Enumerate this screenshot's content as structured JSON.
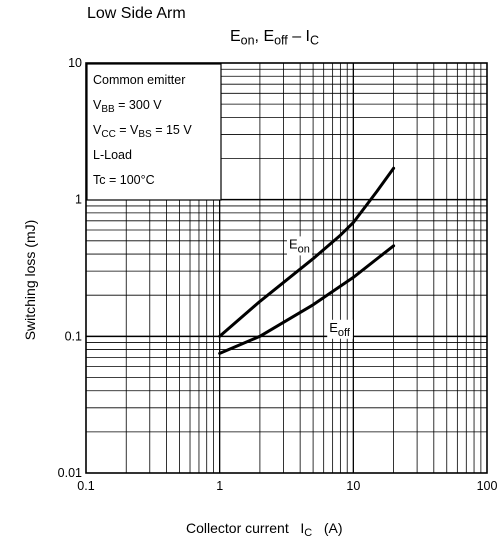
{
  "page_title": "Low Side Arm",
  "chart_data": {
    "type": "line",
    "title": {
      "main1": "E",
      "sub1": "on",
      "main2": ", E",
      "sub2": "off",
      "main3": " – I",
      "sub3": "C"
    },
    "xlabel": {
      "text": "Collector current",
      "symbol": "I",
      "sub": "C",
      "unit": "(A)"
    },
    "ylabel": "Switching loss   (mJ)",
    "x_scale": "log",
    "y_scale": "log",
    "xlim": [
      0.1,
      100
    ],
    "ylim": [
      0.01,
      10
    ],
    "x_ticks": [
      "0.1",
      "1",
      "10",
      "100"
    ],
    "y_ticks": [
      "0.01",
      "0.1",
      "1",
      "10"
    ],
    "grid": true,
    "conditions": {
      "line1": "Common emitter",
      "line2": {
        "main": "V",
        "sub": "BB",
        "rest": " = 300 V"
      },
      "line3": {
        "main1": "V",
        "sub1": "CC",
        "mid": " = V",
        "sub2": "BS",
        "rest": " = 15 V"
      },
      "line4": "L-Load",
      "line5": "Tc = 100°C"
    },
    "series": [
      {
        "name": "Eon",
        "label_main": "E",
        "label_sub": "on",
        "x": [
          1,
          2,
          5,
          8,
          10,
          15,
          20
        ],
        "y": [
          0.1,
          0.18,
          0.37,
          0.55,
          0.68,
          1.15,
          1.7
        ]
      },
      {
        "name": "Eoff",
        "label_main": "E",
        "label_sub": "off",
        "x": [
          1,
          2,
          5,
          10,
          20
        ],
        "y": [
          0.075,
          0.1,
          0.17,
          0.27,
          0.46
        ]
      }
    ]
  }
}
